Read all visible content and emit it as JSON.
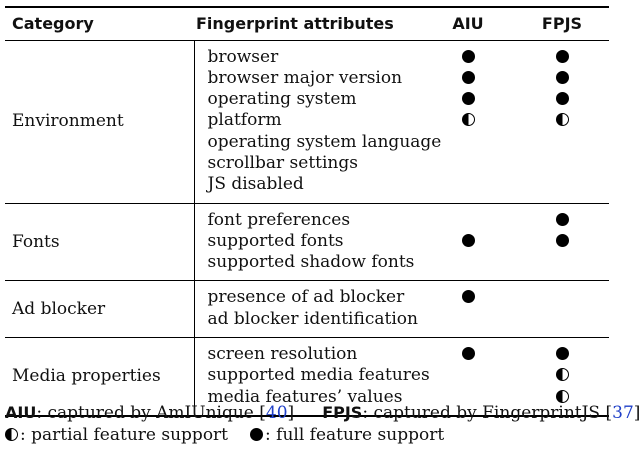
{
  "table": {
    "headers": {
      "category": "Category",
      "attributes": "Fingerprint attributes",
      "aiu": "AIU",
      "fpjs": "FPJS"
    },
    "groups": [
      {
        "category": "Environment",
        "rows": [
          {
            "attribute": "browser",
            "aiu": "full",
            "fpjs": "full"
          },
          {
            "attribute": "browser major version",
            "aiu": "full",
            "fpjs": "full"
          },
          {
            "attribute": "operating system",
            "aiu": "full",
            "fpjs": "full"
          },
          {
            "attribute": "platform",
            "aiu": "partial",
            "fpjs": "partial"
          },
          {
            "attribute": "operating system language",
            "aiu": "none",
            "fpjs": "none"
          },
          {
            "attribute": "scrollbar settings",
            "aiu": "none",
            "fpjs": "none"
          },
          {
            "attribute": "JS disabled",
            "aiu": "none",
            "fpjs": "none"
          }
        ]
      },
      {
        "category": "Fonts",
        "rows": [
          {
            "attribute": "font preferences",
            "aiu": "none",
            "fpjs": "full"
          },
          {
            "attribute": "supported fonts",
            "aiu": "full",
            "fpjs": "full"
          },
          {
            "attribute": "supported shadow fonts",
            "aiu": "none",
            "fpjs": "none"
          }
        ]
      },
      {
        "category": "Ad blocker",
        "rows": [
          {
            "attribute": "presence of ad blocker",
            "aiu": "full",
            "fpjs": "none"
          },
          {
            "attribute": "ad blocker identification",
            "aiu": "none",
            "fpjs": "none"
          }
        ]
      },
      {
        "category": "Media properties",
        "rows": [
          {
            "attribute": "screen resolution",
            "aiu": "full",
            "fpjs": "full"
          },
          {
            "attribute": "supported media features",
            "aiu": "none",
            "fpjs": "partial"
          },
          {
            "attribute": "media features’ values",
            "aiu": "none",
            "fpjs": "partial"
          }
        ]
      }
    ]
  },
  "legend": {
    "aiu_abbr": "AIU",
    "aiu_text": ": captured by AmIUnique [",
    "aiu_ref": "40",
    "aiu_close": "]",
    "fpjs_abbr": "FPJS",
    "fpjs_text": ": captured by FingerprintJS [",
    "fpjs_ref": "37",
    "fpjs_close": "]",
    "partial_text": ": partial feature support",
    "full_text": ": full feature support"
  },
  "colors": {
    "reference_link": "#2040c8",
    "rule": "#000000"
  }
}
